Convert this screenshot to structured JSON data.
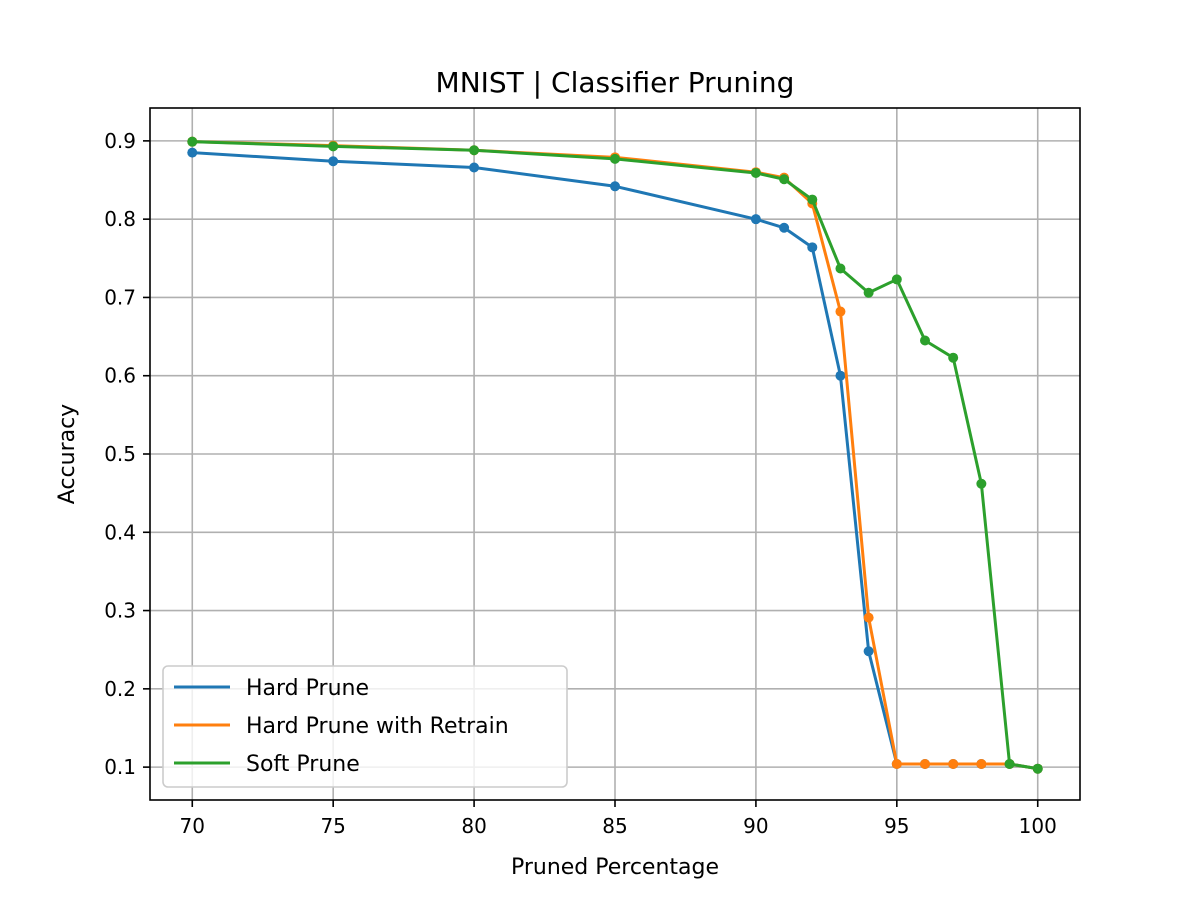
{
  "chart_data": {
    "type": "line",
    "title": "MNIST | Classifier Pruning",
    "xlabel": "Pruned Percentage",
    "ylabel": "Accuracy",
    "xlim": [
      68.5,
      101.5
    ],
    "ylim": [
      0.058,
      0.942
    ],
    "x_ticks": [
      70,
      75,
      80,
      85,
      90,
      95,
      100
    ],
    "y_ticks": [
      0.1,
      0.2,
      0.3,
      0.4,
      0.5,
      0.6,
      0.7,
      0.8,
      0.9
    ],
    "x_tick_labels": [
      "70",
      "75",
      "80",
      "85",
      "90",
      "95",
      "100"
    ],
    "y_tick_labels": [
      "0.1",
      "0.2",
      "0.3",
      "0.4",
      "0.5",
      "0.6",
      "0.7",
      "0.8",
      "0.9"
    ],
    "grid": true,
    "legend_position": "lower-left",
    "series": [
      {
        "name": "Hard Prune",
        "color": "#1f77b4",
        "x": [
          70,
          75,
          80,
          85,
          90,
          91,
          92,
          93,
          94,
          95,
          96,
          97,
          98,
          99,
          100
        ],
        "y": [
          0.885,
          0.874,
          0.866,
          0.842,
          0.8,
          0.789,
          0.764,
          0.6,
          0.248,
          0.104,
          0.104,
          0.104,
          0.104,
          0.104,
          0.098
        ]
      },
      {
        "name": "Hard Prune with Retrain",
        "color": "#ff7f0e",
        "x": [
          70,
          75,
          80,
          85,
          90,
          91,
          92,
          93,
          94,
          95,
          96,
          97,
          98,
          99,
          100
        ],
        "y": [
          0.899,
          0.894,
          0.888,
          0.879,
          0.86,
          0.853,
          0.82,
          0.682,
          0.291,
          0.104,
          0.104,
          0.104,
          0.104,
          0.104,
          0.098
        ]
      },
      {
        "name": "Soft Prune",
        "color": "#2ca02c",
        "x": [
          70,
          75,
          80,
          85,
          90,
          91,
          92,
          93,
          94,
          95,
          96,
          97,
          98,
          99,
          100
        ],
        "y": [
          0.899,
          0.893,
          0.888,
          0.877,
          0.859,
          0.851,
          0.825,
          0.737,
          0.706,
          0.723,
          0.645,
          0.623,
          0.462,
          0.104,
          0.098
        ]
      }
    ]
  }
}
